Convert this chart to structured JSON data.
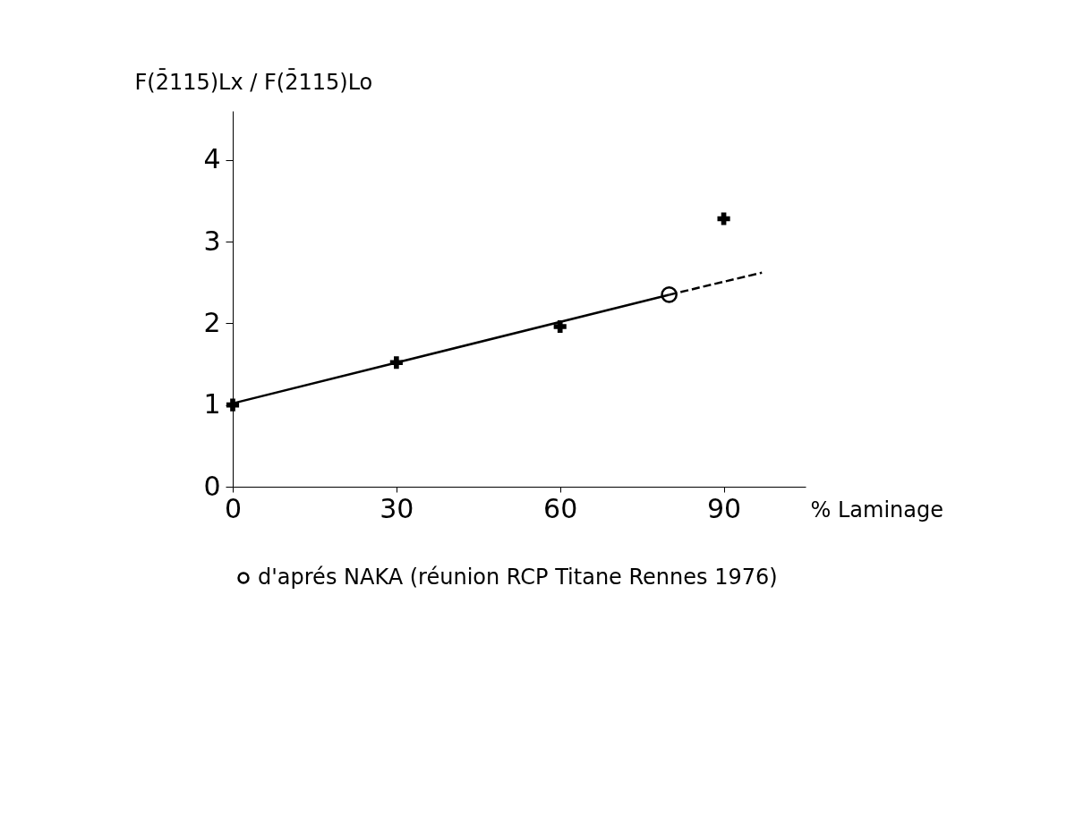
{
  "chart_data": {
    "type": "scatter",
    "ylabel": "F(2̄115)Lx / F(2̄115)Lo",
    "xlabel": "% Laminage",
    "xlim": [
      0,
      105
    ],
    "xticks": [
      0,
      30,
      60,
      90
    ],
    "ylim": [
      0,
      4.6
    ],
    "yticks": [
      0,
      1,
      2,
      3,
      4
    ],
    "grid": false,
    "legend": "bottom",
    "marker": "cross",
    "series": [
      {
        "type": "line",
        "color": "#000000",
        "line_style": "solid",
        "marker": "none",
        "x": [
          0,
          80
        ],
        "values": [
          1.02,
          2.35
        ]
      },
      {
        "type": "line",
        "color": "#000000",
        "line_style": "dashed",
        "marker": "none",
        "x": [
          80,
          97
        ],
        "values": [
          2.35,
          2.62
        ]
      },
      {
        "color": "#000000",
        "x": [
          0,
          30,
          60,
          90
        ],
        "values": [
          1.0,
          1.52,
          1.96,
          3.28
        ]
      },
      {
        "name": "d'aprés NAKA (réunion RCP Titane Rennes 1976)",
        "color": "#000000",
        "marker": "circle",
        "x": [
          80
        ],
        "values": [
          2.35
        ]
      }
    ]
  }
}
